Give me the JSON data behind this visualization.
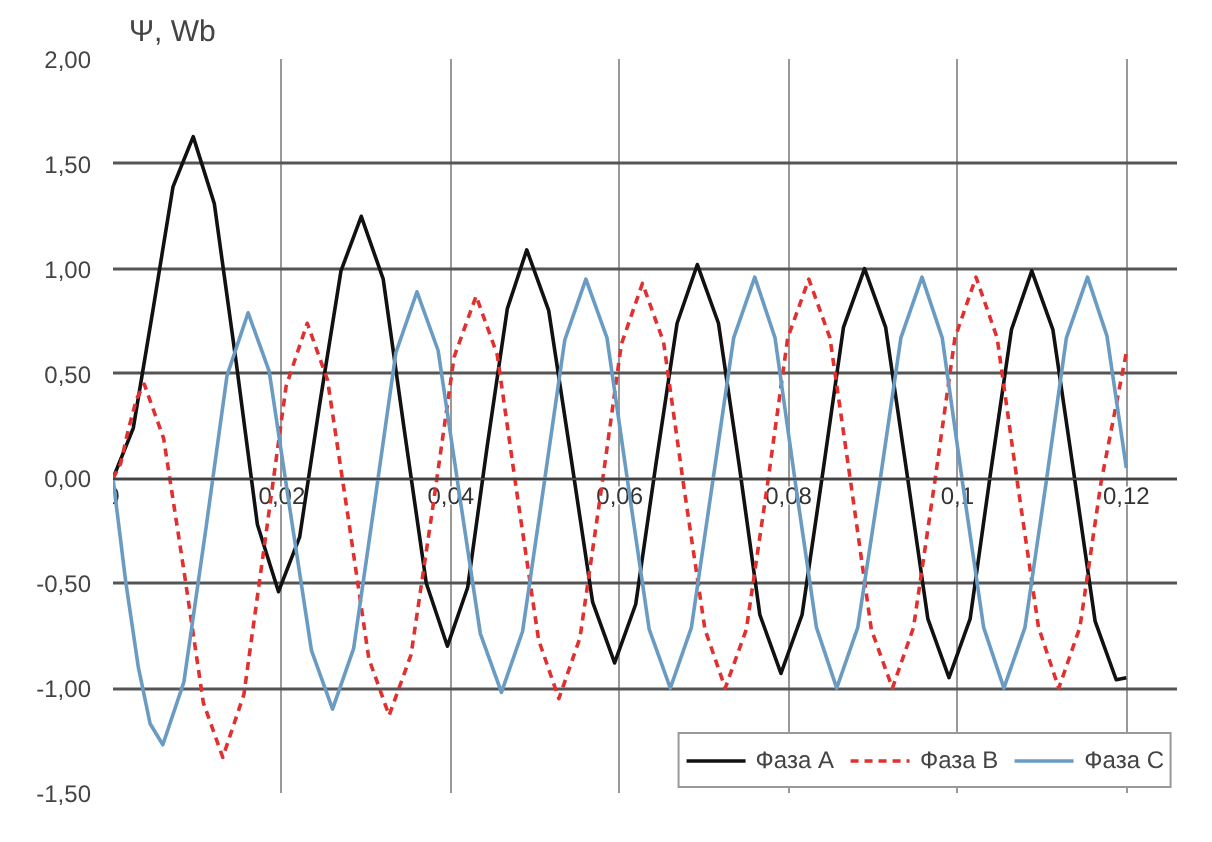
{
  "chart_data": {
    "type": "line",
    "ylabel": "Ψ, Wb",
    "xlim": [
      0,
      0.126
    ],
    "ylim": [
      -1.5,
      2.0
    ],
    "xticks": [
      0,
      {
        "value": 0.02,
        "label": "0,02"
      },
      {
        "value": 0.04,
        "label": "0,04"
      },
      {
        "value": 0.06,
        "label": "0,06"
      },
      {
        "value": 0.08,
        "label": "0,08"
      },
      {
        "value": 0.1,
        "label": "0,1"
      },
      {
        "value": 0.12,
        "label": "0,12"
      }
    ],
    "yticks": [
      {
        "value": -1.5,
        "label": "-1,50"
      },
      {
        "value": -1.0,
        "label": "-1,00"
      },
      {
        "value": -0.5,
        "label": "-0,50"
      },
      {
        "value": 0,
        "label": "0,00"
      },
      {
        "value": 0.5,
        "label": "0,50"
      },
      {
        "value": 1.0,
        "label": "1,00"
      },
      {
        "value": 1.5,
        "label": "1,50"
      },
      {
        "value": 2.0,
        "label": "2,00"
      }
    ],
    "grid": true,
    "legend": "bottom right",
    "series": [
      {
        "name": "Фаза A",
        "color": "#111111",
        "line_style": "solid",
        "x": [
          0,
          0.0024,
          0.0048,
          0.0071,
          0.0095,
          0.012,
          0.0146,
          0.0171,
          0.0196,
          0.0221,
          0.0245,
          0.027,
          0.0294,
          0.032,
          0.0345,
          0.0371,
          0.0396,
          0.042,
          0.0443,
          0.0467,
          0.049,
          0.0516,
          0.0542,
          0.0568,
          0.0594,
          0.0619,
          0.0643,
          0.0668,
          0.0692,
          0.0717,
          0.0742,
          0.0766,
          0.0791,
          0.0816,
          0.0841,
          0.0865,
          0.089,
          0.0915,
          0.094,
          0.0965,
          0.099,
          0.1015,
          0.1039,
          0.1064,
          0.1088,
          0.1113,
          0.1138,
          0.1163,
          0.1188,
          0.12
        ],
        "values": [
          0,
          0.24,
          0.82,
          1.39,
          1.63,
          1.31,
          0.55,
          -0.22,
          -0.54,
          -0.28,
          0.36,
          0.99,
          1.25,
          0.95,
          0.23,
          -0.5,
          -0.8,
          -0.52,
          0.15,
          0.81,
          1.09,
          0.8,
          0.11,
          -0.59,
          -0.88,
          -0.6,
          0.07,
          0.74,
          1.02,
          0.74,
          0.05,
          -0.65,
          -0.93,
          -0.65,
          0.04,
          0.72,
          1.0,
          0.72,
          0.03,
          -0.67,
          -0.95,
          -0.67,
          0.02,
          0.71,
          0.99,
          0.71,
          0.02,
          -0.68,
          -0.96,
          -0.95
        ]
      },
      {
        "name": "Фаза B",
        "color": "#e03030",
        "line_style": "dashed",
        "x": [
          0,
          0.0009,
          0.0018,
          0.0028,
          0.0037,
          0.006,
          0.0084,
          0.0107,
          0.013,
          0.0155,
          0.018,
          0.0205,
          0.023,
          0.0254,
          0.0279,
          0.0303,
          0.0327,
          0.0353,
          0.0379,
          0.0404,
          0.043,
          0.0455,
          0.0479,
          0.0504,
          0.0528,
          0.0553,
          0.0578,
          0.0602,
          0.0627,
          0.0652,
          0.0676,
          0.0701,
          0.0725,
          0.075,
          0.0775,
          0.0799,
          0.0824,
          0.0849,
          0.0874,
          0.0898,
          0.0923,
          0.0948,
          0.0973,
          0.0997,
          0.1022,
          0.1047,
          0.1071,
          0.1096,
          0.112,
          0.1145,
          0.117,
          0.12
        ],
        "values": [
          0,
          0.07,
          0.23,
          0.38,
          0.45,
          0.19,
          -0.44,
          -1.07,
          -1.33,
          -1.03,
          -0.3,
          0.44,
          0.74,
          0.47,
          -0.2,
          -0.86,
          -1.13,
          -0.84,
          -0.13,
          0.58,
          0.87,
          0.59,
          -0.09,
          -0.77,
          -1.05,
          -0.76,
          -0.06,
          0.64,
          0.93,
          0.65,
          -0.04,
          -0.72,
          -1.0,
          -0.72,
          -0.03,
          0.67,
          0.95,
          0.67,
          -0.03,
          -0.72,
          -1.0,
          -0.71,
          -0.02,
          0.67,
          0.96,
          0.67,
          -0.02,
          -0.71,
          -1.0,
          -0.71,
          -0.02,
          0.6
        ]
      },
      {
        "name": "Фаза C",
        "color": "#6a9bc3",
        "line_style": "solid",
        "x": [
          0,
          0.0015,
          0.003,
          0.0044,
          0.0059,
          0.0084,
          0.011,
          0.0135,
          0.016,
          0.0185,
          0.021,
          0.0235,
          0.026,
          0.0285,
          0.031,
          0.0335,
          0.036,
          0.0385,
          0.041,
          0.0435,
          0.046,
          0.0485,
          0.051,
          0.0535,
          0.056,
          0.0585,
          0.061,
          0.0635,
          0.066,
          0.0685,
          0.071,
          0.0735,
          0.076,
          0.0784,
          0.0808,
          0.0833,
          0.0857,
          0.0882,
          0.0908,
          0.0933,
          0.0958,
          0.0982,
          0.1006,
          0.1031,
          0.1055,
          0.108,
          0.1105,
          0.1129,
          0.1154,
          0.1177,
          0.12
        ],
        "values": [
          0,
          -0.49,
          -0.9,
          -1.17,
          -1.27,
          -0.97,
          -0.24,
          0.49,
          0.79,
          0.51,
          -0.16,
          -0.82,
          -1.1,
          -0.81,
          -0.11,
          0.6,
          0.89,
          0.61,
          -0.07,
          -0.74,
          -1.02,
          -0.73,
          -0.04,
          0.66,
          0.95,
          0.67,
          -0.03,
          -0.72,
          -1.0,
          -0.71,
          -0.02,
          0.67,
          0.96,
          0.67,
          -0.02,
          -0.71,
          -1.0,
          -0.71,
          -0.02,
          0.67,
          0.96,
          0.67,
          -0.02,
          -0.71,
          -1.0,
          -0.71,
          -0.02,
          0.67,
          0.96,
          0.68,
          0.05
        ]
      }
    ]
  }
}
